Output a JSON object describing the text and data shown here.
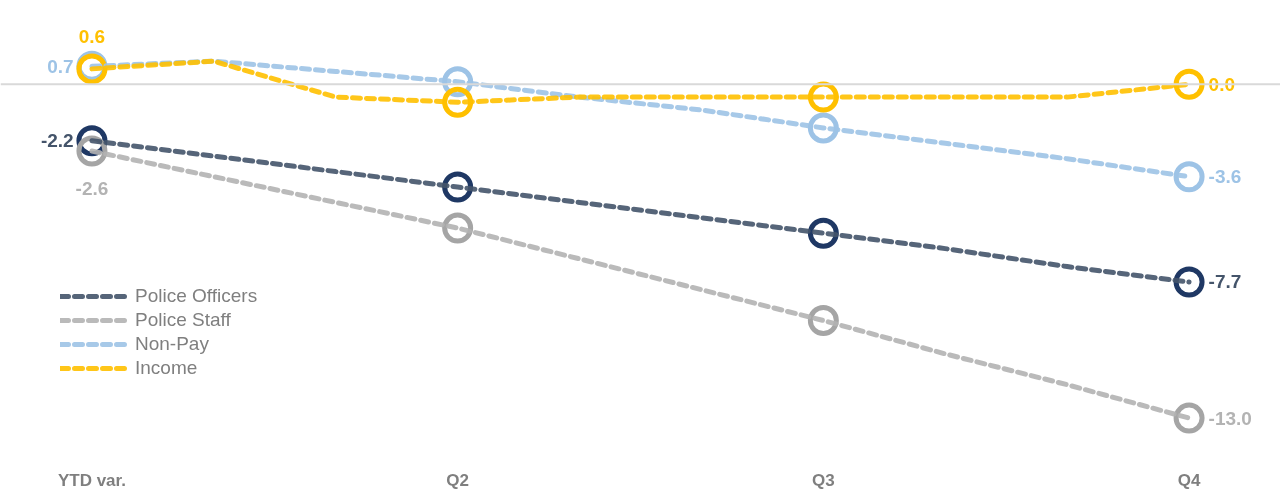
{
  "chart_data": {
    "type": "line",
    "categories": [
      "YTD var.",
      null,
      null,
      "Q2",
      null,
      null,
      "Q3",
      null,
      null,
      "Q4"
    ],
    "series": [
      {
        "name": "Police Officers",
        "color": "#44546a",
        "values": [
          -2.2,
          -2.8,
          -3.4,
          -4.0,
          -4.6,
          -5.2,
          -5.8,
          -6.4,
          -7.1,
          -7.7
        ],
        "value_labels": [
          "-2.2",
          null,
          null,
          null,
          null,
          null,
          null,
          null,
          null,
          "-7.7"
        ]
      },
      {
        "name": "Police Staff",
        "color": "#b3b3b3",
        "values": [
          -2.6,
          -3.6,
          -4.6,
          -5.6,
          -6.8,
          -8.0,
          -9.2,
          -10.5,
          -11.7,
          -13.0
        ],
        "value_labels": [
          "-2.6",
          null,
          null,
          null,
          null,
          null,
          null,
          null,
          null,
          "-13.0"
        ]
      },
      {
        "name": "Non-Pay",
        "color": "#9dc3e6",
        "values": [
          0.7,
          0.9,
          0.5,
          0.1,
          -0.5,
          -1.0,
          -1.7,
          -2.3,
          -2.9,
          -3.6
        ],
        "value_labels": [
          "0.7",
          null,
          null,
          null,
          null,
          null,
          null,
          null,
          null,
          "-3.6"
        ]
      },
      {
        "name": "Income",
        "color": "#ffc000",
        "values": [
          0.6,
          0.9,
          -0.5,
          -0.7,
          -0.5,
          -0.5,
          -0.5,
          -0.5,
          -0.5,
          0.0
        ],
        "value_labels": [
          "0.6",
          null,
          null,
          null,
          null,
          null,
          null,
          null,
          null,
          "0.0"
        ]
      },
      {
        "type": "scatter",
        "marker": "circle",
        "color": "#1f3864",
        "x": [
          "YTD var.",
          "Q2",
          "Q3",
          "Q4"
        ],
        "values": [
          -2.2,
          -4.0,
          -5.8,
          -7.7
        ]
      },
      {
        "type": "scatter",
        "marker": "circle",
        "color": "#a5a5a5",
        "x": [
          "YTD var.",
          "Q2",
          "Q3",
          "Q4"
        ],
        "values": [
          -2.6,
          -5.6,
          -9.2,
          -13.0
        ]
      },
      {
        "type": "scatter",
        "marker": "circle",
        "color": "#9dc3e6",
        "x": [
          "YTD var.",
          "Q2",
          "Q3",
          "Q4"
        ],
        "values": [
          0.7,
          0.1,
          -1.7,
          -3.6
        ]
      },
      {
        "type": "scatter",
        "marker": "circle",
        "color": "#ffc000",
        "x": [
          "YTD var.",
          "Q2",
          "Q3",
          "Q4"
        ],
        "values": [
          0.6,
          -0.7,
          -0.5,
          0.0
        ]
      }
    ],
    "ref_lines": [
      {
        "axis": "y",
        "value": 0,
        "color": "#d9d9d9"
      }
    ],
    "legend": "bottom left",
    "line_style": "dashed",
    "grid": false,
    "tick_labels": "x"
  }
}
